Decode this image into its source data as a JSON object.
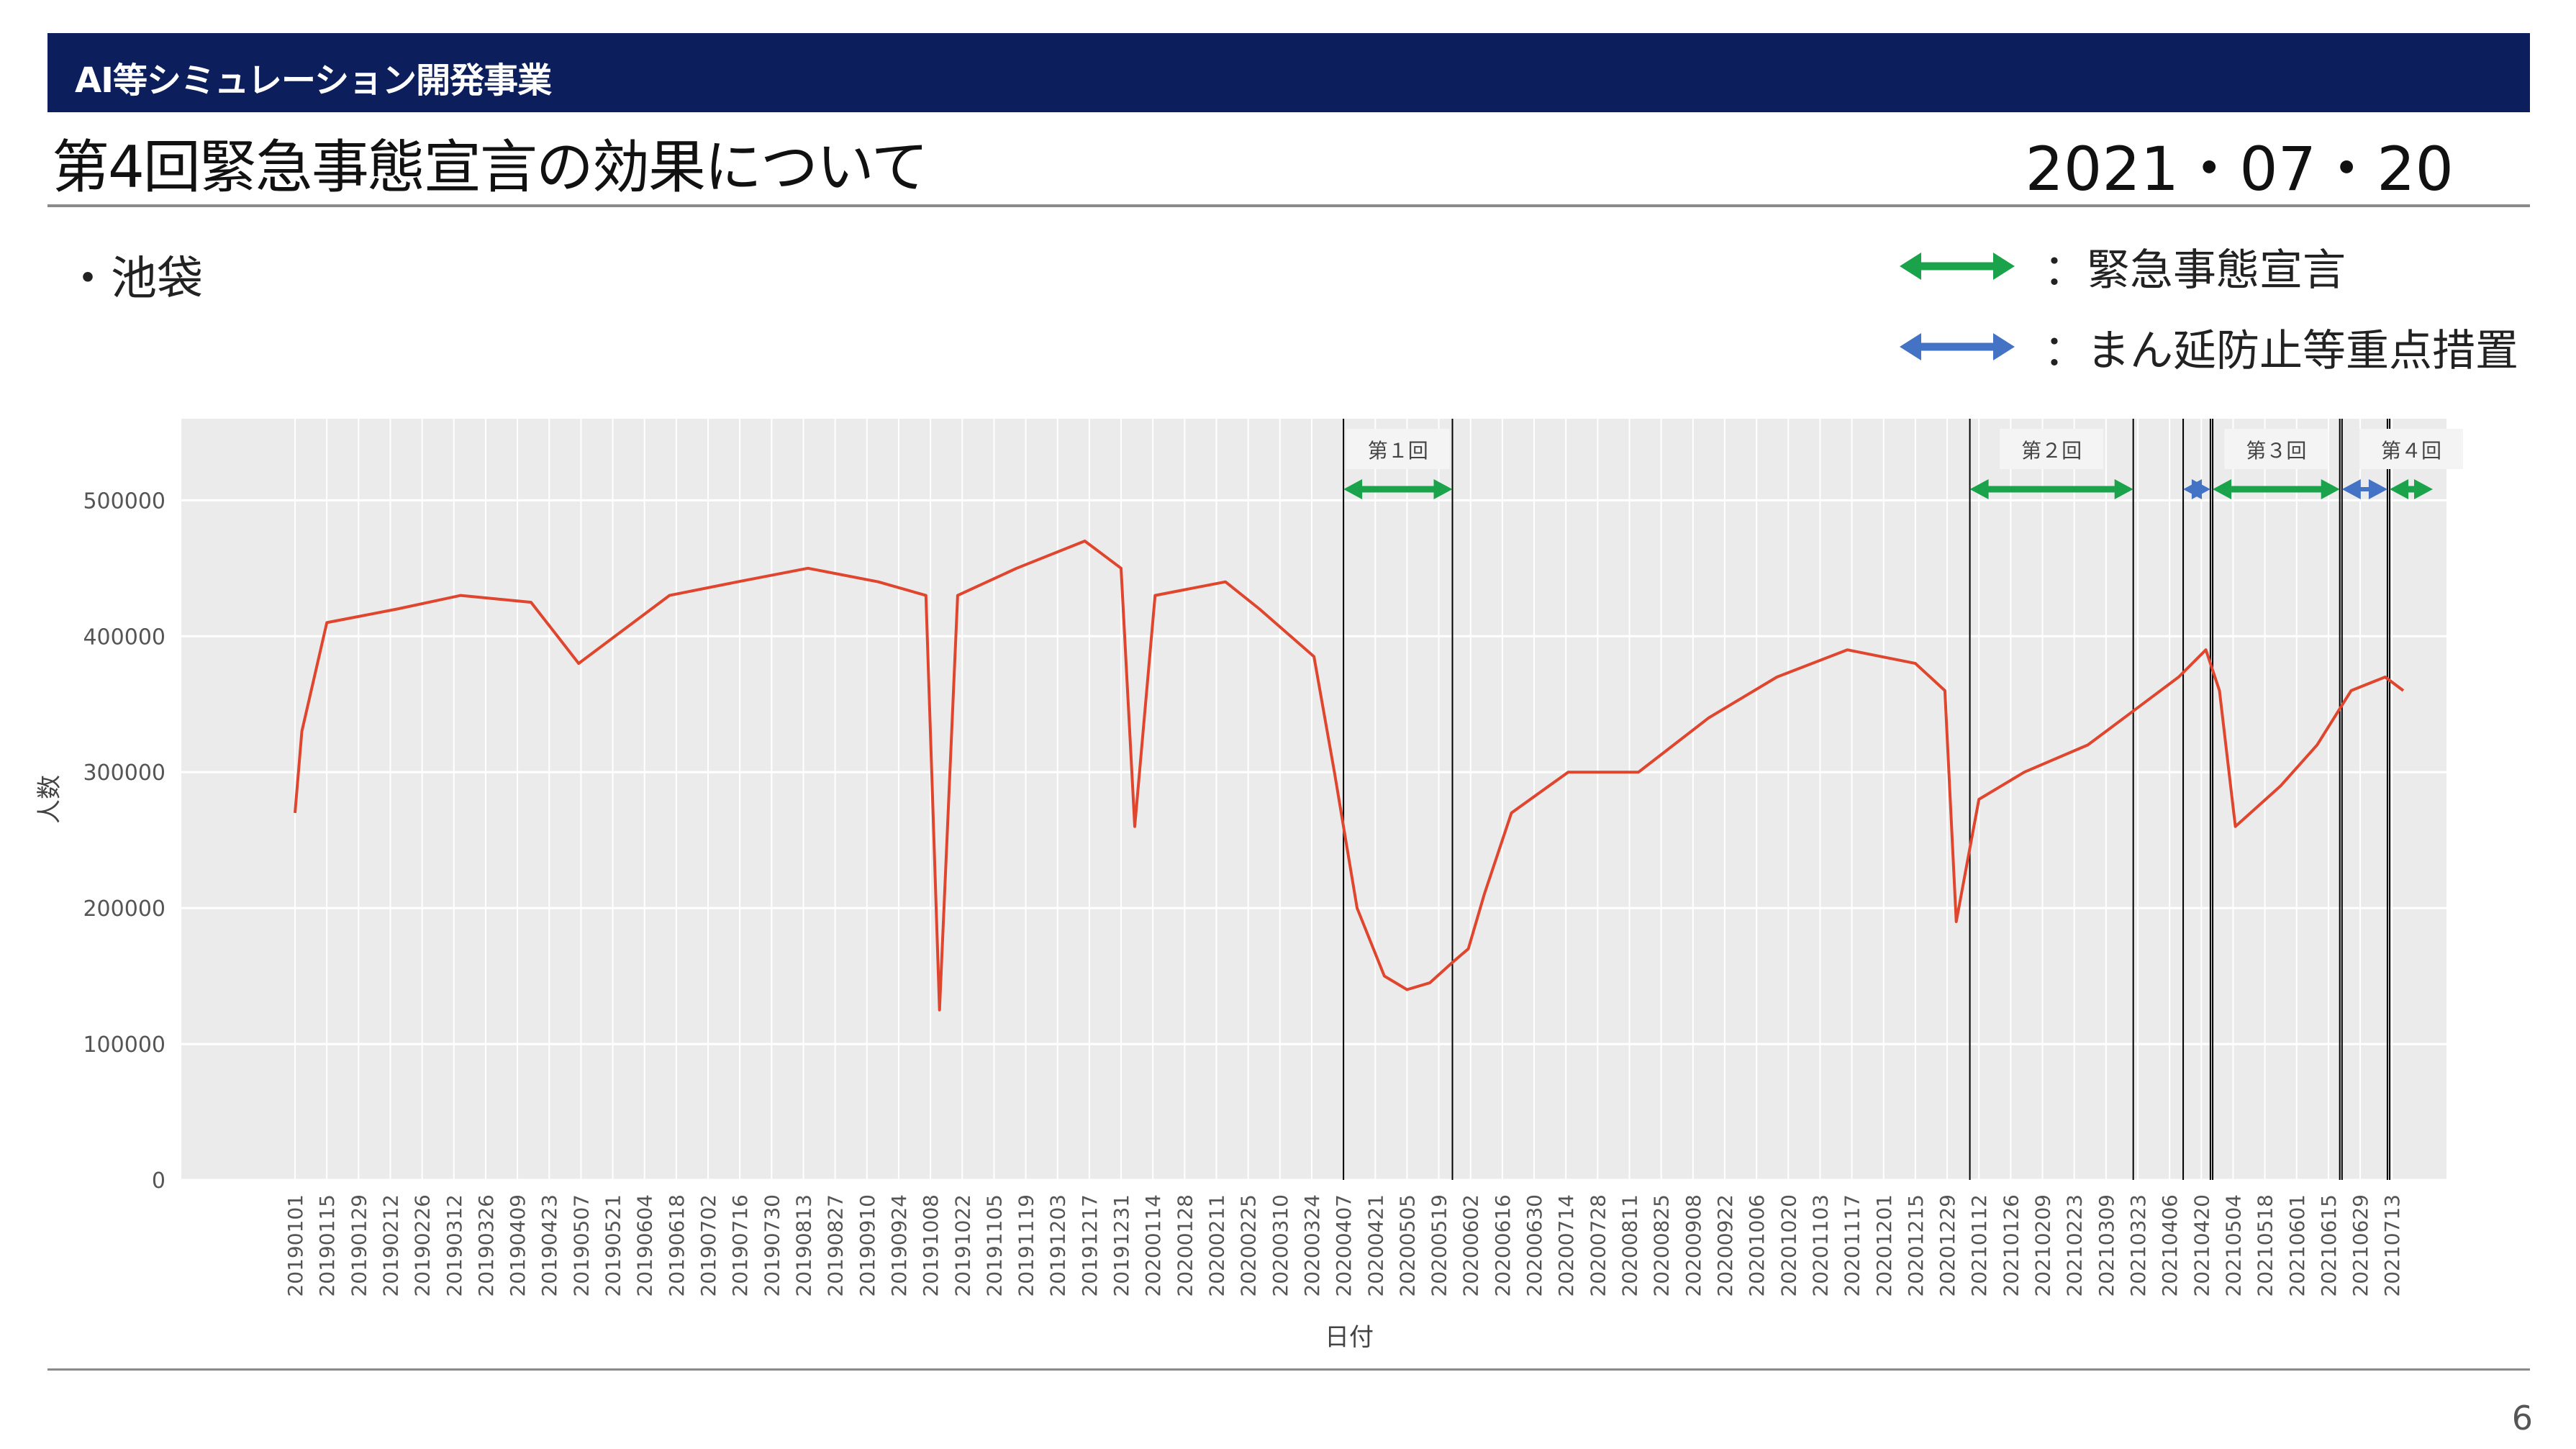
{
  "header": {
    "org": "AI等シミュレーション開発事業"
  },
  "title": "第4回緊急事態宣言の効果について",
  "date": "2021・07・20",
  "bullet": "・池袋",
  "legend": [
    {
      "label": "：緊急事態宣言",
      "color": "#1aa34a"
    },
    {
      "label": "：まん延防止等重点措置",
      "color": "#4472c4"
    }
  ],
  "page_number": "6",
  "colors": {
    "header_bg": "#0c1e5b",
    "line": "#e0452e",
    "panel": "#ebebeb",
    "grid": "#ffffff",
    "emergency": "#1aa34a",
    "priority": "#4472c4"
  },
  "chart_data": {
    "type": "line",
    "xlabel": "日付",
    "ylabel": "人数",
    "ylim": [
      0,
      560000
    ],
    "xrange": [
      "2019-01-01",
      "2021-07-18"
    ],
    "yticks": [
      0,
      100000,
      200000,
      300000,
      400000,
      500000
    ],
    "ytick_labels": [
      "0",
      "100000",
      "200000",
      "300000",
      "400000",
      "500000"
    ],
    "xtick_labels": [
      "20190101",
      "20190115",
      "20190129",
      "20190212",
      "20190226",
      "20190312",
      "20190326",
      "20190409",
      "20190423",
      "20190507",
      "20190521",
      "20190604",
      "20190618",
      "20190702",
      "20190716",
      "20190730",
      "20190813",
      "20190827",
      "20190910",
      "20190924",
      "20191008",
      "20191022",
      "20191105",
      "20191119",
      "20191203",
      "20191217",
      "20191231",
      "20200114",
      "20200128",
      "20200211",
      "20200225",
      "20200310",
      "20200324",
      "20200407",
      "20200421",
      "20200505",
      "20200519",
      "20200602",
      "20200616",
      "20200630",
      "20200714",
      "20200728",
      "20200811",
      "20200825",
      "20200908",
      "20200922",
      "20201006",
      "20201020",
      "20201103",
      "20201117",
      "20201201",
      "20201215",
      "20201229",
      "20210112",
      "20210126",
      "20210209",
      "20210223",
      "20210309",
      "20210323",
      "20210406",
      "20210420",
      "20210504",
      "20210518",
      "20210601",
      "20210615",
      "20210629",
      "20210713"
    ],
    "series": [
      {
        "x": [
          "2019-01-01",
          "2019-01-04",
          "2019-01-15",
          "2019-02-15",
          "2019-03-15",
          "2019-04-15",
          "2019-05-06",
          "2019-06-15",
          "2019-07-15",
          "2019-08-15",
          "2019-09-15",
          "2019-10-06",
          "2019-10-12",
          "2019-10-20",
          "2019-11-15",
          "2019-12-15",
          "2019-12-31",
          "2020-01-06",
          "2020-01-15",
          "2020-02-15",
          "2020-03-01",
          "2020-03-25",
          "2020-04-03",
          "2020-04-13",
          "2020-04-25",
          "2020-05-05",
          "2020-05-15",
          "2020-05-25",
          "2020-06-01",
          "2020-06-08",
          "2020-06-20",
          "2020-07-15",
          "2020-08-15",
          "2020-09-15",
          "2020-10-15",
          "2020-11-15",
          "2020-12-15",
          "2020-12-28",
          "2021-01-02",
          "2021-01-12",
          "2021-02-01",
          "2021-03-01",
          "2021-03-25",
          "2021-04-10",
          "2021-04-22",
          "2021-04-28",
          "2021-05-05",
          "2021-05-25",
          "2021-06-10",
          "2021-06-25",
          "2021-07-10",
          "2021-07-18"
        ],
        "y": [
          270000,
          330000,
          410000,
          420000,
          430000,
          425000,
          380000,
          430000,
          440000,
          450000,
          440000,
          430000,
          125000,
          430000,
          450000,
          470000,
          450000,
          260000,
          430000,
          440000,
          420000,
          385000,
          300000,
          200000,
          150000,
          140000,
          145000,
          160000,
          170000,
          210000,
          270000,
          300000,
          300000,
          340000,
          370000,
          390000,
          380000,
          360000,
          190000,
          280000,
          300000,
          320000,
          350000,
          370000,
          390000,
          360000,
          260000,
          290000,
          320000,
          360000,
          370000,
          360000
        ]
      }
    ],
    "periods": [
      {
        "name": "第１回",
        "type": "emergency",
        "start": "2020-04-07",
        "end": "2020-05-25"
      },
      {
        "name": "第２回",
        "type": "emergency",
        "start": "2021-01-08",
        "end": "2021-03-21"
      },
      {
        "name": "",
        "type": "priority",
        "start": "2021-04-12",
        "end": "2021-04-24"
      },
      {
        "name": "第３回",
        "type": "emergency",
        "start": "2021-04-25",
        "end": "2021-06-20"
      },
      {
        "name": "",
        "type": "priority",
        "start": "2021-06-21",
        "end": "2021-07-11"
      },
      {
        "name": "第４回",
        "type": "emergency",
        "start": "2021-07-12",
        "end": "2021-07-31"
      }
    ]
  }
}
